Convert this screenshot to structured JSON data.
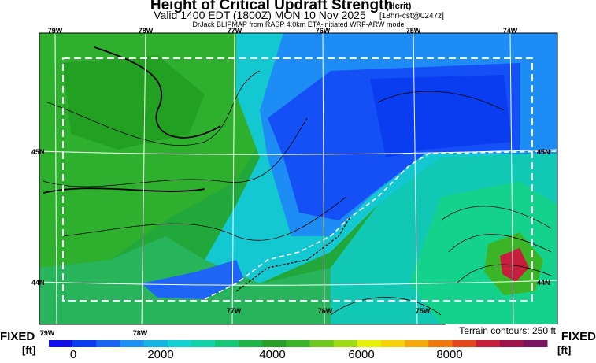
{
  "header": {
    "title": "Height of Critical Updraft Strength",
    "title_suffix": "(Hcrit)",
    "valid": "Valid 1400 EDT (1800Z) MON 10 Nov 2025",
    "valid_suffix": "[18hrFcst@0247z]",
    "source": "DrJack BLIPMAP from RASP 4.0km ETA-initiated WRF-ARW model"
  },
  "map": {
    "top_labels": [
      "79W",
      "78W",
      "77W",
      "76W",
      "75W",
      "74W"
    ],
    "bottom_labels": [
      "79W",
      "78W",
      "77W",
      "76W",
      "75W"
    ],
    "left_labels": [
      "45N",
      "44N"
    ],
    "right_labels": [
      "45N",
      "44N"
    ],
    "terrain_note": "Terrain contours: 250 ft"
  },
  "colorbar": {
    "left_label": "FIXED",
    "right_label": "FIXED",
    "unit": "[ft]",
    "tick_labels": [
      "0",
      "2000",
      "4000",
      "6000",
      "8000"
    ],
    "colors": [
      "#1010e6",
      "#0a3cf0",
      "#1a64f5",
      "#1e90f5",
      "#14b4e6",
      "#10d2d2",
      "#10d2aa",
      "#14c878",
      "#1eb446",
      "#28a028",
      "#3cb428",
      "#6ec81e",
      "#a0dc14",
      "#e6f00a",
      "#f5d20a",
      "#f5aa0a",
      "#f0780a",
      "#e6461e",
      "#c81e3c",
      "#a0144b",
      "#7a1460"
    ]
  }
}
